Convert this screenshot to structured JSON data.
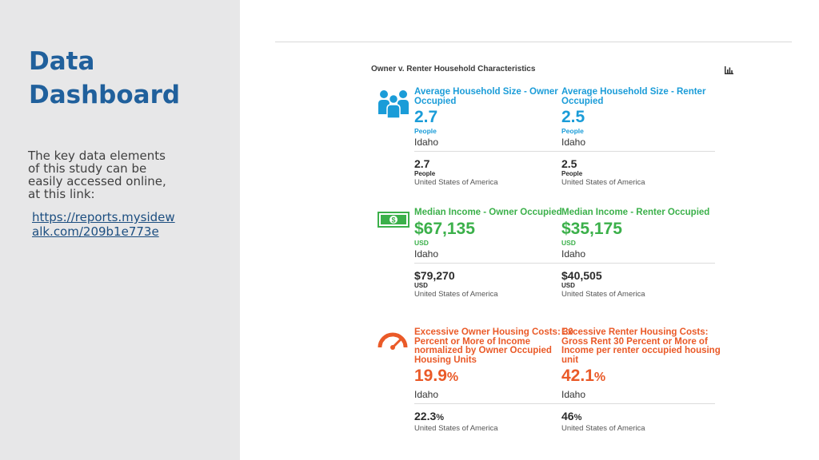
{
  "sidebar": {
    "title": "Data Dashboard",
    "description": "The key data elements of this study can be easily accessed online, at this link:",
    "link": "https://reports.mysidewalk.com/209b1e773e"
  },
  "panel": {
    "title": "Owner v. Renter Household Characteristics",
    "chart_icon": "bar-chart-icon"
  },
  "colors": {
    "household": "#1a9cd8",
    "income": "#3bb04a",
    "costs": "#ea5a28",
    "sidebar_title": "#20609c"
  },
  "metrics": {
    "hh_owner": {
      "title": "Average Household Size - Owner Occupied",
      "value": "2.7",
      "unit": "People",
      "geo": "Idaho",
      "cmp_value": "2.7",
      "cmp_unit": "People",
      "cmp_geo": "United States of America"
    },
    "hh_renter": {
      "title": "Average Household Size - Renter Occupied",
      "value": "2.5",
      "unit": "People",
      "geo": "Idaho",
      "cmp_value": "2.5",
      "cmp_unit": "People",
      "cmp_geo": "United States of America"
    },
    "inc_owner": {
      "title": "Median Income - Owner Occupied",
      "value": "$67,135",
      "unit": "USD",
      "geo": "Idaho",
      "cmp_value": "$79,270",
      "cmp_unit": "USD",
      "cmp_geo": "United States of America"
    },
    "inc_renter": {
      "title": "Median Income - Renter Occupied",
      "value": "$35,175",
      "unit": "USD",
      "geo": "Idaho",
      "cmp_value": "$40,505",
      "cmp_unit": "USD",
      "cmp_geo": "United States of America"
    },
    "cost_owner": {
      "title": "Excessive Owner Housing Costs: 30 Percent or More of Income normalized by Owner Occupied Housing Units",
      "value": "19.9",
      "pct": "%",
      "geo": "Idaho",
      "cmp_value": "22.3",
      "cmp_pct": "%",
      "cmp_geo": "United States of America"
    },
    "cost_renter": {
      "title": "Excessive Renter Housing Costs: Gross Rent 30 Percent or More of Income per renter occupied housing unit",
      "value": "42.1",
      "pct": "%",
      "geo": "Idaho",
      "cmp_value": "46",
      "cmp_pct": "%",
      "cmp_geo": "United States of America"
    }
  },
  "icons": {
    "household": "people-icon",
    "income": "money-icon",
    "costs": "gauge-icon"
  }
}
